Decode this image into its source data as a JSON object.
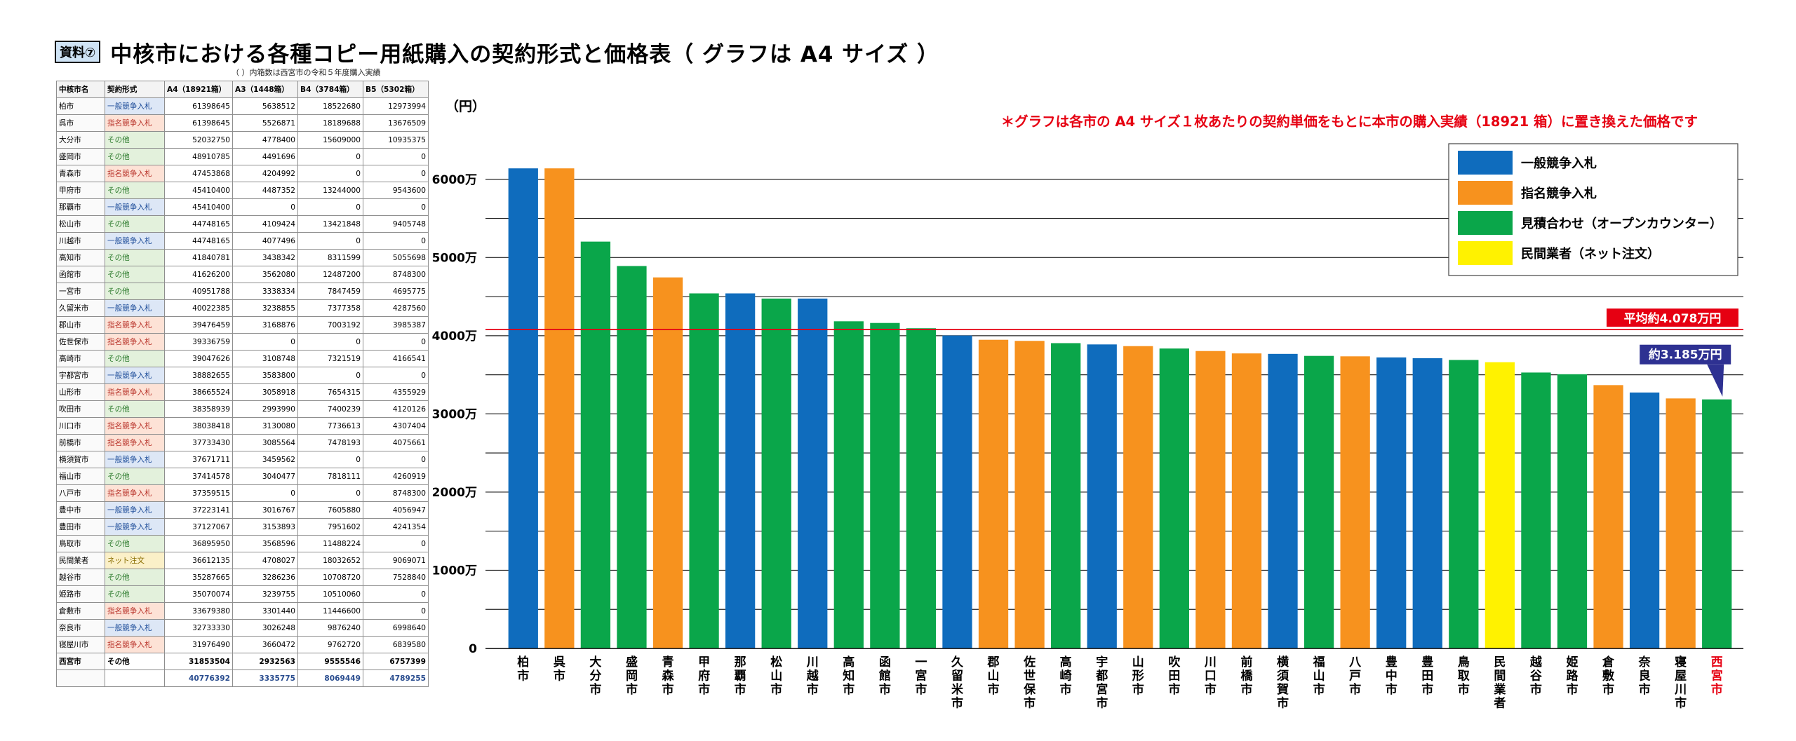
{
  "document": {
    "badge": "資料⑦",
    "title": "中核市における各種コピー用紙購入の契約形式と価格表（ グラフは A4 サイズ ）"
  },
  "table": {
    "note": "（ ）内箱数は西宮市の令和５年度購入実績",
    "headers": [
      "中核市名",
      "契約形式",
      "A4（18921箱）",
      "A3（1448箱）",
      "B4（3784箱）",
      "B5（5302箱）"
    ],
    "rows": [
      {
        "city": "柏市",
        "type": "一般競争入札",
        "kind": "ippan",
        "a4": "61398645",
        "a3": "5638512",
        "b4": "18522680",
        "b5": "12973994"
      },
      {
        "city": "呉市",
        "type": "指名競争入札",
        "kind": "shimei",
        "a4": "61398645",
        "a3": "5526871",
        "b4": "18189688",
        "b5": "13676509"
      },
      {
        "city": "大分市",
        "type": "その他",
        "kind": "sonota",
        "a4": "52032750",
        "a3": "4778400",
        "b4": "15609000",
        "b5": "10935375"
      },
      {
        "city": "盛岡市",
        "type": "その他",
        "kind": "sonota",
        "a4": "48910785",
        "a3": "4491696",
        "b4": "0",
        "b5": "0"
      },
      {
        "city": "青森市",
        "type": "指名競争入札",
        "kind": "shimei",
        "a4": "47453868",
        "a3": "4204992",
        "b4": "0",
        "b5": "0"
      },
      {
        "city": "甲府市",
        "type": "その他",
        "kind": "sonota",
        "a4": "45410400",
        "a3": "4487352",
        "b4": "13244000",
        "b5": "9543600"
      },
      {
        "city": "那覇市",
        "type": "一般競争入札",
        "kind": "ippan",
        "a4": "45410400",
        "a3": "0",
        "b4": "0",
        "b5": "0"
      },
      {
        "city": "松山市",
        "type": "その他",
        "kind": "sonota",
        "a4": "44748165",
        "a3": "4109424",
        "b4": "13421848",
        "b5": "9405748"
      },
      {
        "city": "川越市",
        "type": "一般競争入札",
        "kind": "ippan",
        "a4": "44748165",
        "a3": "4077496",
        "b4": "0",
        "b5": "0"
      },
      {
        "city": "高知市",
        "type": "その他",
        "kind": "sonota",
        "a4": "41840781",
        "a3": "3438342",
        "b4": "8311599",
        "b5": "5055698"
      },
      {
        "city": "函館市",
        "type": "その他",
        "kind": "sonota",
        "a4": "41626200",
        "a3": "3562080",
        "b4": "12487200",
        "b5": "8748300"
      },
      {
        "city": "一宮市",
        "type": "その他",
        "kind": "sonota",
        "a4": "40951788",
        "a3": "3338334",
        "b4": "7847459",
        "b5": "4695775"
      },
      {
        "city": "久留米市",
        "type": "一般競争入札",
        "kind": "ippan",
        "a4": "40022385",
        "a3": "3238855",
        "b4": "7377358",
        "b5": "4287560"
      },
      {
        "city": "郡山市",
        "type": "指名競争入札",
        "kind": "shimei",
        "a4": "39476459",
        "a3": "3168876",
        "b4": "7003192",
        "b5": "3985387"
      },
      {
        "city": "佐世保市",
        "type": "指名競争入札",
        "kind": "shimei",
        "a4": "39336759",
        "a3": "0",
        "b4": "0",
        "b5": "0"
      },
      {
        "city": "高崎市",
        "type": "その他",
        "kind": "sonota",
        "a4": "39047626",
        "a3": "3108748",
        "b4": "7321519",
        "b5": "4166541"
      },
      {
        "city": "宇都宮市",
        "type": "一般競争入札",
        "kind": "ippan",
        "a4": "38882655",
        "a3": "3583800",
        "b4": "0",
        "b5": "0"
      },
      {
        "city": "山形市",
        "type": "指名競争入札",
        "kind": "shimei",
        "a4": "38665524",
        "a3": "3058918",
        "b4": "7654315",
        "b5": "4355929"
      },
      {
        "city": "吹田市",
        "type": "その他",
        "kind": "sonota",
        "a4": "38358939",
        "a3": "2993990",
        "b4": "7400239",
        "b5": "4120126"
      },
      {
        "city": "川口市",
        "type": "指名競争入札",
        "kind": "shimei",
        "a4": "38038418",
        "a3": "3130080",
        "b4": "7736613",
        "b5": "4307404"
      },
      {
        "city": "前橋市",
        "type": "指名競争入札",
        "kind": "shimei",
        "a4": "37733430",
        "a3": "3085564",
        "b4": "7478193",
        "b5": "4075661"
      },
      {
        "city": "横須賀市",
        "type": "一般競争入札",
        "kind": "ippan",
        "a4": "37671711",
        "a3": "3459562",
        "b4": "0",
        "b5": "0"
      },
      {
        "city": "福山市",
        "type": "その他",
        "kind": "sonota",
        "a4": "37414578",
        "a3": "3040477",
        "b4": "7818111",
        "b5": "4260919"
      },
      {
        "city": "八戸市",
        "type": "指名競争入札",
        "kind": "shimei",
        "a4": "37359515",
        "a3": "0",
        "b4": "0",
        "b5": "8748300"
      },
      {
        "city": "豊中市",
        "type": "一般競争入札",
        "kind": "ippan",
        "a4": "37223141",
        "a3": "3016767",
        "b4": "7605880",
        "b5": "4056947"
      },
      {
        "city": "豊田市",
        "type": "一般競争入札",
        "kind": "ippan",
        "a4": "37127067",
        "a3": "3153893",
        "b4": "7951602",
        "b5": "4241354"
      },
      {
        "city": "鳥取市",
        "type": "その他",
        "kind": "sonota",
        "a4": "36895950",
        "a3": "3568596",
        "b4": "11488224",
        "b5": "0"
      },
      {
        "city": "民間業者",
        "type": "ネット注文",
        "kind": "net",
        "a4": "36612135",
        "a3": "4708027",
        "b4": "18032652",
        "b5": "9069071"
      },
      {
        "city": "越谷市",
        "type": "その他",
        "kind": "sonota",
        "a4": "35287665",
        "a3": "3286236",
        "b4": "10708720",
        "b5": "7528840"
      },
      {
        "city": "姫路市",
        "type": "その他",
        "kind": "sonota",
        "a4": "35070074",
        "a3": "3239755",
        "b4": "10510060",
        "b5": "0"
      },
      {
        "city": "倉敷市",
        "type": "指名競争入札",
        "kind": "shimei",
        "a4": "33679380",
        "a3": "3301440",
        "b4": "11446600",
        "b5": "0"
      },
      {
        "city": "奈良市",
        "type": "一般競争入札",
        "kind": "ippan",
        "a4": "32733330",
        "a3": "3026248",
        "b4": "9876240",
        "b5": "6998640"
      },
      {
        "city": "寝屋川市",
        "type": "指名競争入札",
        "kind": "shimei",
        "a4": "31976490",
        "a3": "3660472",
        "b4": "9762720",
        "b5": "6839580"
      },
      {
        "city": "西宮市",
        "type": "その他",
        "kind": "self",
        "a4": "31853504",
        "a3": "2932563",
        "b4": "9555546",
        "b5": "6757399"
      }
    ],
    "average_row": {
      "city": "",
      "type": "",
      "a4": "40776392",
      "a3": "3335775",
      "b4": "8069449",
      "b5": "4789255"
    }
  },
  "chart_data": {
    "type": "bar",
    "ylabel": "（円）",
    "ylim": [
      0,
      65000000
    ],
    "y_ticks": [
      0,
      10000000,
      20000000,
      30000000,
      40000000,
      50000000,
      60000000
    ],
    "y_tick_labels": [
      "0",
      "1000万",
      "2000万",
      "3000万",
      "4000万",
      "5000万",
      "6000万"
    ],
    "grid": true,
    "annotation": "＊グラフは各市の A4 サイズ１枚あたりの契約単価をもとに本市の購入実績（18921 箱）に置き換えた価格です",
    "legend_placement": "top-right",
    "legend": [
      {
        "key": "ippan",
        "label": "一般競争入札",
        "color": "#0f6cbd"
      },
      {
        "key": "shimei",
        "label": "指名競争入札",
        "color": "#f7921e"
      },
      {
        "key": "sonota",
        "label": "見積合わせ（オープンカウンター）",
        "color": "#0aa64a"
      },
      {
        "key": "net",
        "label": "民間業者（ネット注文）",
        "color": "#fff200"
      }
    ],
    "average_line": {
      "value": 40780000,
      "label": "平均約4.078万円",
      "color": "#e60012"
    },
    "callout": {
      "label": "約3.185万円",
      "target": "西宮市",
      "color": "#2e3192"
    },
    "highlight_category": "西宮市",
    "categories": [
      "柏市",
      "呉市",
      "大分市",
      "盛岡市",
      "青森市",
      "甲府市",
      "那覇市",
      "松山市",
      "川越市",
      "高知市",
      "函館市",
      "一宮市",
      "久留米市",
      "郡山市",
      "佐世保市",
      "高崎市",
      "宇都宮市",
      "山形市",
      "吹田市",
      "川口市",
      "前橋市",
      "横須賀市",
      "福山市",
      "八戸市",
      "豊中市",
      "豊田市",
      "鳥取市",
      "民間業者",
      "越谷市",
      "姫路市",
      "倉敷市",
      "奈良市",
      "寝屋川市",
      "西宮市"
    ],
    "series_type": [
      "ippan",
      "shimei",
      "sonota",
      "sonota",
      "shimei",
      "sonota",
      "ippan",
      "sonota",
      "ippan",
      "sonota",
      "sonota",
      "sonota",
      "ippan",
      "shimei",
      "shimei",
      "sonota",
      "ippan",
      "shimei",
      "sonota",
      "shimei",
      "shimei",
      "ippan",
      "sonota",
      "shimei",
      "ippan",
      "ippan",
      "sonota",
      "net",
      "sonota",
      "sonota",
      "shimei",
      "ippan",
      "shimei",
      "sonota"
    ],
    "values": [
      61398645,
      61398645,
      52032750,
      48910785,
      47453868,
      45410400,
      45410400,
      44748165,
      44748165,
      41840781,
      41626200,
      40951788,
      40022385,
      39476459,
      39336759,
      39047626,
      38882655,
      38665524,
      38358939,
      38038418,
      37733430,
      37671711,
      37414578,
      37359515,
      37223141,
      37127067,
      36895950,
      36612135,
      35287665,
      35070074,
      33679380,
      32733330,
      31976490,
      31853504
    ]
  }
}
